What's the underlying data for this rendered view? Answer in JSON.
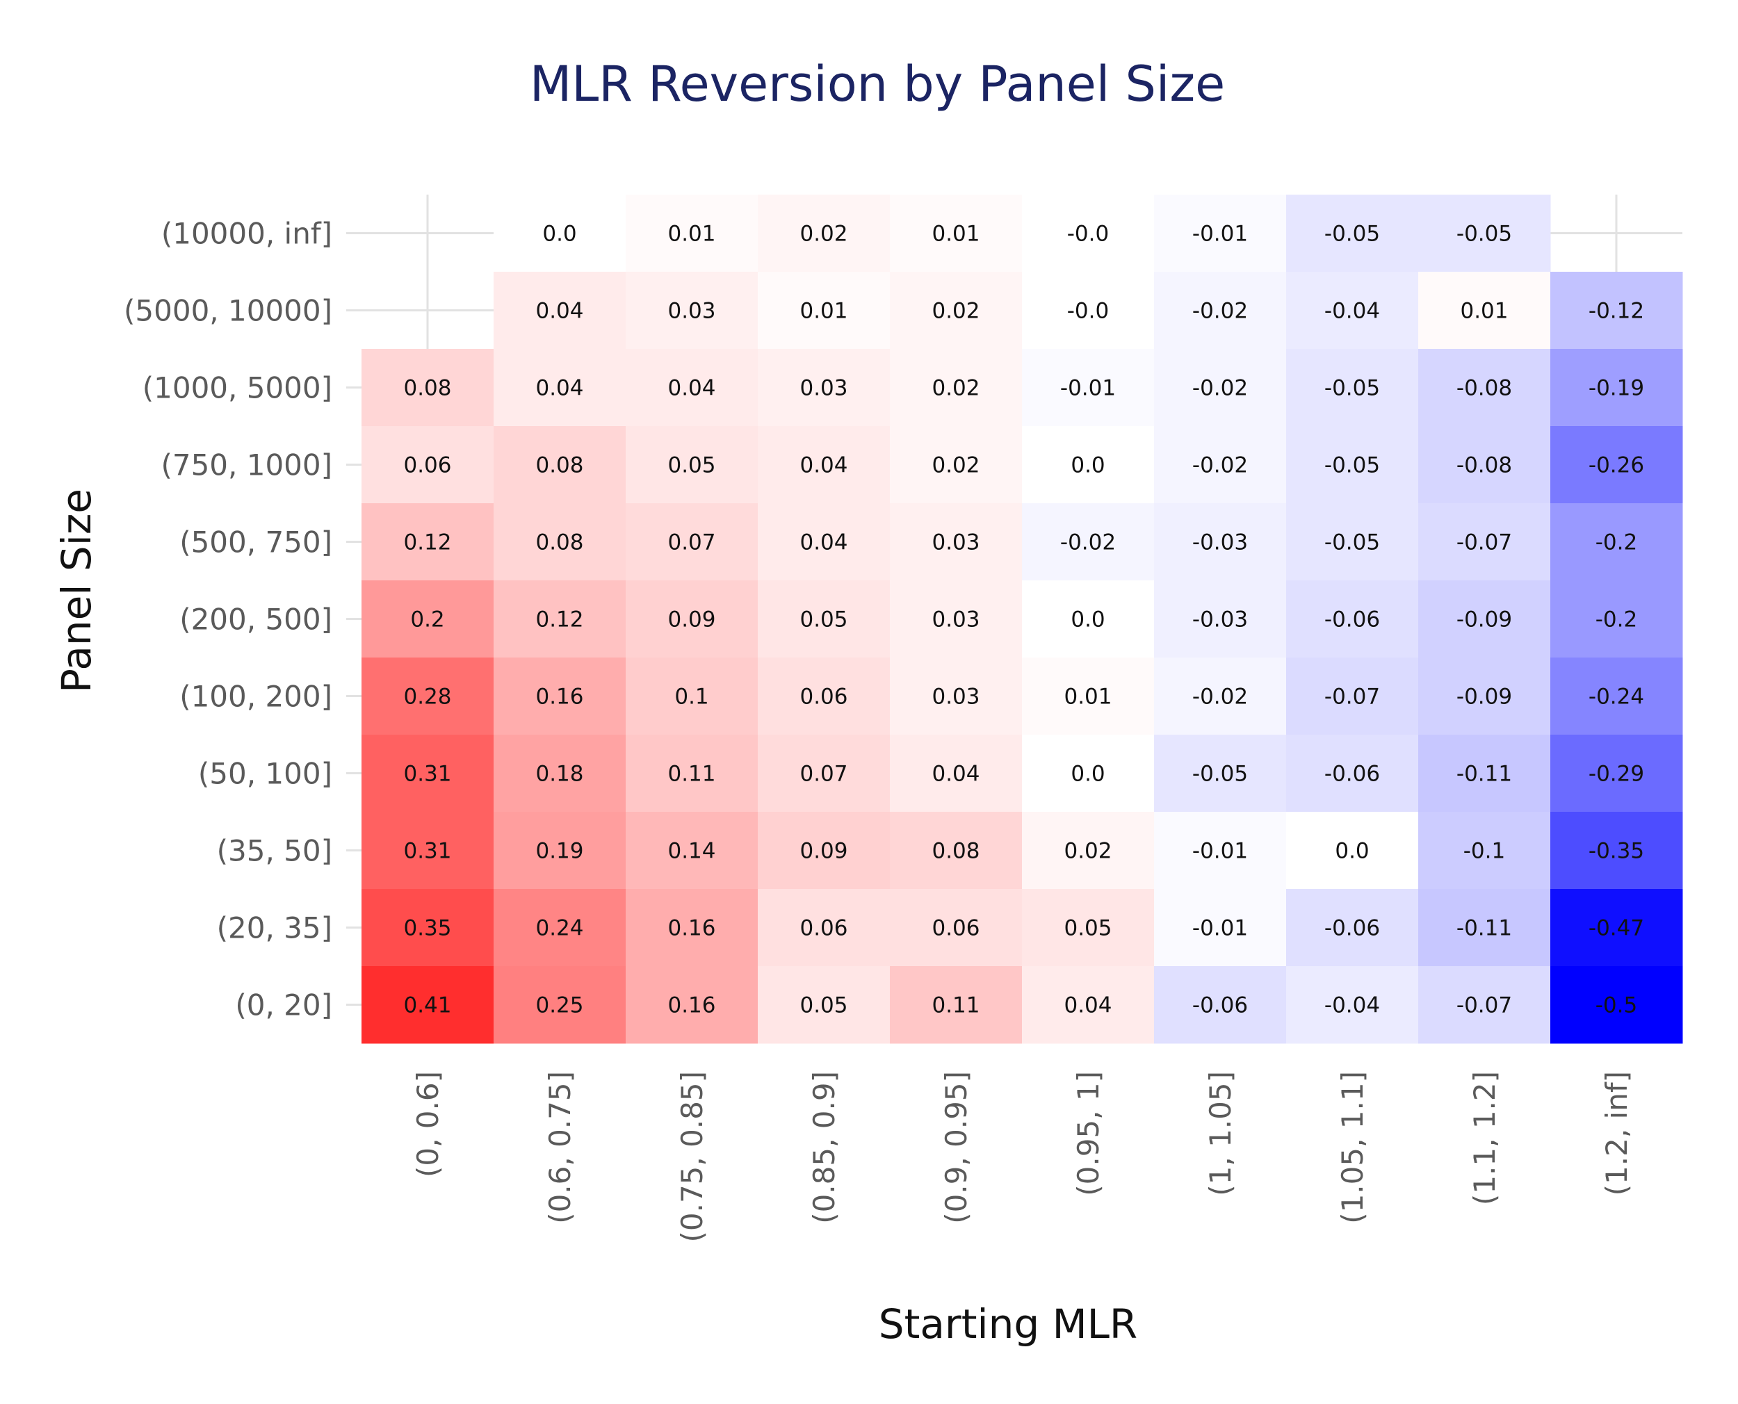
{
  "chart_data": {
    "type": "heatmap",
    "title": "MLR Reversion by Panel Size",
    "xlabel": "Starting MLR",
    "ylabel": "Panel Size",
    "x_categories": [
      "(0, 0.6]",
      "(0.6, 0.75]",
      "(0.75, 0.85]",
      "(0.85, 0.9]",
      "(0.9, 0.95]",
      "(0.95, 1]",
      "(1, 1.05]",
      "(1.05, 1.1]",
      "(1.1, 1.2]",
      "(1.2, inf]"
    ],
    "y_categories": [
      "(10000, inf]",
      "(5000, 10000]",
      "(1000, 5000]",
      "(750, 1000]",
      "(500, 750]",
      "(200, 500]",
      "(100, 200]",
      "(50, 100]",
      "(35, 50]",
      "(20, 35]",
      "(0, 20]"
    ],
    "value_labels": [
      [
        null,
        "0.0",
        "0.01",
        "0.02",
        "0.01",
        "-0.0",
        "-0.01",
        "-0.05",
        "-0.05",
        null
      ],
      [
        null,
        "0.04",
        "0.03",
        "0.01",
        "0.02",
        "-0.0",
        "-0.02",
        "-0.04",
        "0.01",
        "-0.12"
      ],
      [
        "0.08",
        "0.04",
        "0.04",
        "0.03",
        "0.02",
        "-0.01",
        "-0.02",
        "-0.05",
        "-0.08",
        "-0.19"
      ],
      [
        "0.06",
        "0.08",
        "0.05",
        "0.04",
        "0.02",
        "0.0",
        "-0.02",
        "-0.05",
        "-0.08",
        "-0.26"
      ],
      [
        "0.12",
        "0.08",
        "0.07",
        "0.04",
        "0.03",
        "-0.02",
        "-0.03",
        "-0.05",
        "-0.07",
        "-0.2"
      ],
      [
        "0.2",
        "0.12",
        "0.09",
        "0.05",
        "0.03",
        "0.0",
        "-0.03",
        "-0.06",
        "-0.09",
        "-0.2"
      ],
      [
        "0.28",
        "0.16",
        "0.1",
        "0.06",
        "0.03",
        "0.01",
        "-0.02",
        "-0.07",
        "-0.09",
        "-0.24"
      ],
      [
        "0.31",
        "0.18",
        "0.11",
        "0.07",
        "0.04",
        "0.0",
        "-0.05",
        "-0.06",
        "-0.11",
        "-0.29"
      ],
      [
        "0.31",
        "0.19",
        "0.14",
        "0.09",
        "0.08",
        "0.02",
        "-0.01",
        "0.0",
        "-0.1",
        "-0.35"
      ],
      [
        "0.35",
        "0.24",
        "0.16",
        "0.06",
        "0.06",
        "0.05",
        "-0.01",
        "-0.06",
        "-0.11",
        "-0.47"
      ],
      [
        "0.41",
        "0.25",
        "0.16",
        "0.05",
        "0.11",
        "0.04",
        "-0.06",
        "-0.04",
        "-0.07",
        "-0.5"
      ]
    ],
    "color_scale": {
      "min": -0.5,
      "max": 0.5,
      "negative_color": "#0000ff",
      "zero_color": "#ffffff",
      "positive_color": "#ff0000"
    },
    "grid": true,
    "legend": "none"
  }
}
